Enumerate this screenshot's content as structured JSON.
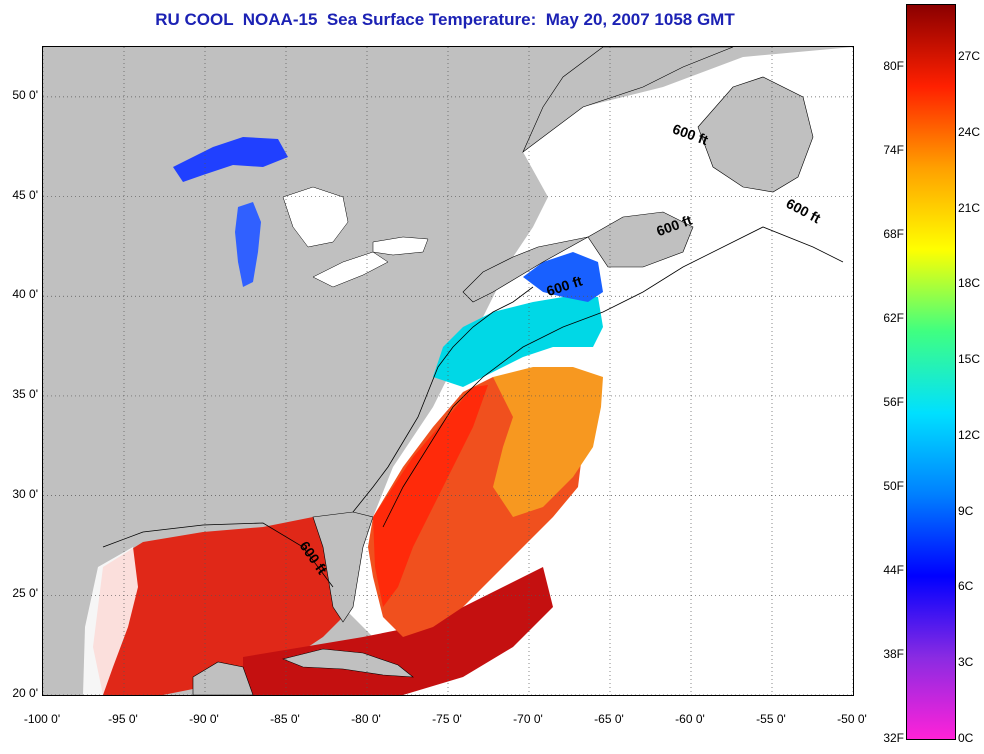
{
  "title": "RU COOL  NOAA-15  Sea Surface Temperature:  May 20, 2007 1058 GMT",
  "map": {
    "lon_range": [
      -100,
      -50
    ],
    "lat_range": [
      20,
      52.5
    ],
    "land_color": "#c0c0c0",
    "water_nodata_color": "#ffffff",
    "grid": "dotted",
    "lat_ticks": [
      {
        "value": 20,
        "label": "20 0'"
      },
      {
        "value": 25,
        "label": "25 0'"
      },
      {
        "value": 30,
        "label": "30 0'"
      },
      {
        "value": 35,
        "label": "35 0'"
      },
      {
        "value": 40,
        "label": "40 0'"
      },
      {
        "value": 45,
        "label": "45 0'"
      },
      {
        "value": 50,
        "label": "50 0'"
      }
    ],
    "lon_ticks": [
      {
        "value": -100,
        "label": "-100 0'"
      },
      {
        "value": -95,
        "label": "-95 0'"
      },
      {
        "value": -90,
        "label": "-90 0'"
      },
      {
        "value": -85,
        "label": "-85 0'"
      },
      {
        "value": -80,
        "label": "-80 0'"
      },
      {
        "value": -75,
        "label": "-75 0'"
      },
      {
        "value": -70,
        "label": "-70 0'"
      },
      {
        "value": -65,
        "label": "-65 0'"
      },
      {
        "value": -60,
        "label": "-60 0'"
      },
      {
        "value": -55,
        "label": "-55 0'"
      },
      {
        "value": -50,
        "label": "-50 0'"
      }
    ],
    "contour_labels": [
      {
        "text": "600 ft",
        "lon": -61.2,
        "lat": 48.2,
        "rotate": 20
      },
      {
        "text": "600 ft",
        "lon": -54.2,
        "lat": 44.5,
        "rotate": 28
      },
      {
        "text": "600 ft",
        "lon": -62.0,
        "lat": 43.0,
        "rotate": -20
      },
      {
        "text": "600 ft",
        "lon": -68.8,
        "lat": 40.0,
        "rotate": -18
      },
      {
        "text": "600 ft",
        "lon": -84.2,
        "lat": 27.5,
        "rotate": 55
      }
    ]
  },
  "colorbar": {
    "fahrenheit_labels": [
      "32F",
      "38F",
      "44F",
      "50F",
      "56F",
      "62F",
      "68F",
      "74F",
      "80F"
    ],
    "celsius_labels": [
      "0C",
      "3C",
      "6C",
      "9C",
      "12C",
      "15C",
      "18C",
      "21C",
      "24C",
      "27C"
    ],
    "colors": [
      "#ff22d8",
      "#8a2be2",
      "#0000ff",
      "#0080ff",
      "#00e0ff",
      "#40ff80",
      "#ffff00",
      "#ffa000",
      "#ff2000",
      "#8b0000"
    ]
  }
}
